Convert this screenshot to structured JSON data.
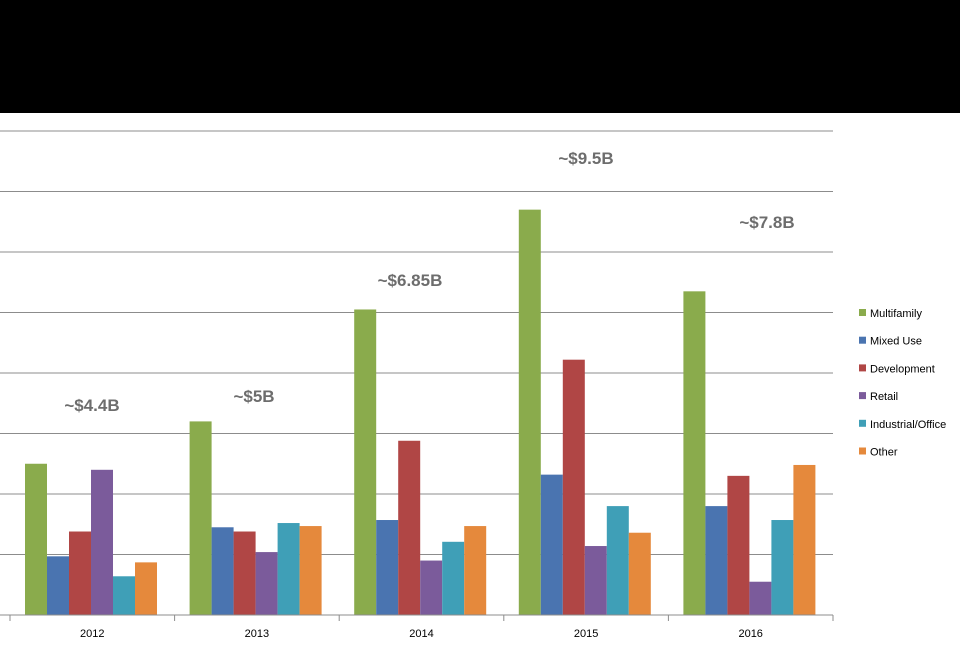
{
  "chart_data": {
    "type": "bar",
    "title": "",
    "xlabel": "",
    "ylabel": "",
    "ylim": [
      0,
      8
    ],
    "grid": true,
    "legend_position": "right",
    "categories": [
      "2012",
      "2013",
      "2014",
      "2015",
      "2016"
    ],
    "series": [
      {
        "name": "Multifamily",
        "color": "#8aab4c",
        "values": [
          2.5,
          3.2,
          5.05,
          6.7,
          5.35
        ]
      },
      {
        "name": "Mixed Use",
        "color": "#4a74b0",
        "values": [
          0.97,
          1.45,
          1.57,
          2.32,
          1.8
        ]
      },
      {
        "name": "Development",
        "color": "#b04645",
        "values": [
          1.38,
          1.38,
          2.88,
          4.22,
          2.3
        ]
      },
      {
        "name": "Retail",
        "color": "#7b5b9b",
        "values": [
          2.4,
          1.04,
          0.9,
          1.14,
          0.55
        ]
      },
      {
        "name": "Industrial/Office",
        "color": "#3f9fb7",
        "values": [
          0.64,
          1.52,
          1.21,
          1.8,
          1.57
        ]
      },
      {
        "name": "Other",
        "color": "#e5893c",
        "values": [
          0.87,
          1.47,
          1.47,
          1.36,
          2.48
        ]
      }
    ],
    "annotations": [
      {
        "category": "2012",
        "text": "~$4.4B"
      },
      {
        "category": "2013",
        "text": "~$5B"
      },
      {
        "category": "2014",
        "text": "~$6.85B"
      },
      {
        "category": "2015",
        "text": "~$9.5B"
      },
      {
        "category": "2016",
        "text": "~$7.8B"
      }
    ]
  }
}
